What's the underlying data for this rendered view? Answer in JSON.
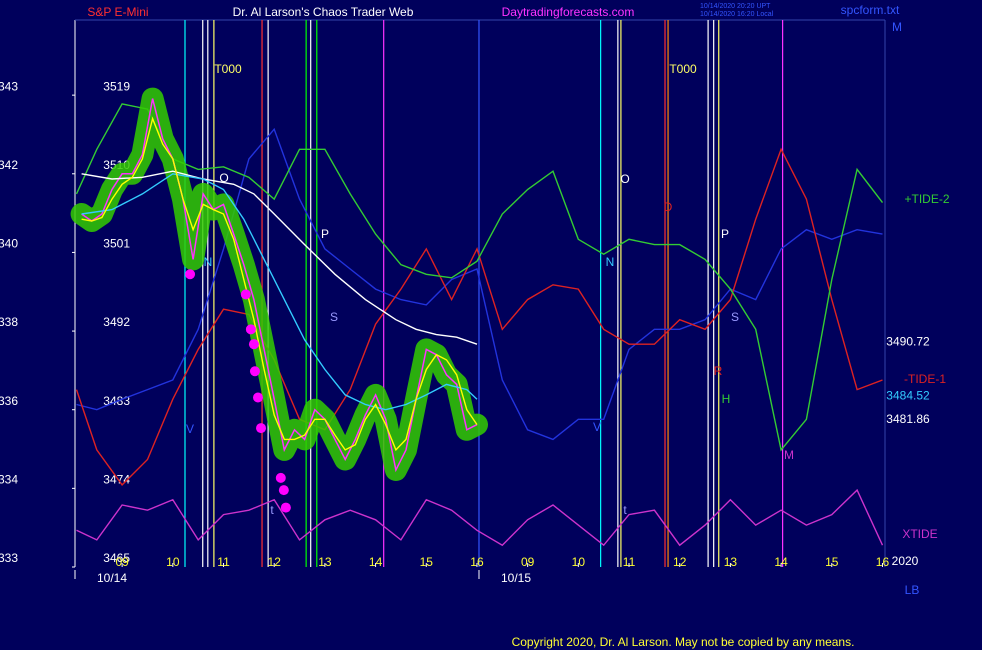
{
  "header": {
    "instrument": "S&P E-Mini",
    "title": "Dr. Al Larson's Chaos Trader Web",
    "site": "Daytradingforecasts.com",
    "timestamp_utc": "10/14/2020 20:20 UPT",
    "timestamp_local": "10/14/2020 16:20 Local",
    "file": "spcform.txt"
  },
  "footer": {
    "copyright": "Copyright 2020, Dr. Al Larson. May not be copied by any means."
  },
  "chart_data": {
    "type": "line",
    "xlim": [
      8.07,
      24.05
    ],
    "ylim": [
      3465,
      3527.6
    ],
    "yticks": [
      3465,
      3474,
      3483,
      3492,
      3501,
      3510,
      3519
    ],
    "left_labels": [
      "333",
      "334",
      "336",
      "338",
      "340",
      "342",
      "343"
    ],
    "xticks": [
      {
        "value": 9,
        "label": "09"
      },
      10,
      11,
      12,
      13,
      14,
      15,
      16,
      {
        "value": 17,
        "label": "09"
      },
      {
        "value": 18,
        "label": "10"
      },
      {
        "value": 19,
        "label": "11"
      },
      {
        "value": 20,
        "label": "12"
      },
      {
        "value": 21,
        "label": "13"
      },
      {
        "value": 22,
        "label": "14"
      },
      {
        "value": 23,
        "label": "15"
      },
      {
        "value": 24,
        "label": "16"
      }
    ],
    "date_ticks": [
      {
        "value": 8.07,
        "label": "10/14"
      },
      {
        "value": 16.04,
        "label": "10/15"
      }
    ],
    "corner_labels": [
      "2020",
      "LB",
      "M"
    ],
    "series": [
      {
        "color": "#ff33ff",
        "halo_color": "#33cc00",
        "x": [
          8.2,
          8.4,
          8.6,
          8.8,
          9.0,
          9.2,
          9.4,
          9.6,
          9.8,
          10.0,
          10.2,
          10.4,
          10.6,
          10.8,
          11.0,
          11.2,
          11.4,
          11.6,
          11.8,
          12.0,
          12.2,
          12.4,
          12.6,
          12.8,
          13.0,
          13.2,
          13.4,
          13.6,
          13.8,
          14.0,
          14.2,
          14.4,
          14.6,
          14.8,
          15.0,
          15.2,
          15.4,
          15.6,
          15.8,
          16.0
        ],
        "values": [
          3505.4,
          3504.6,
          3505.4,
          3508.2,
          3510.0,
          3510.0,
          3512.2,
          3518.6,
          3514.0,
          3511.7,
          3507.1,
          3500.2,
          3507.7,
          3505.9,
          3506.5,
          3503.1,
          3499.6,
          3495.6,
          3489.9,
          3484.2,
          3478.4,
          3480.7,
          3479.6,
          3483.0,
          3481.9,
          3479.6,
          3477.3,
          3479.6,
          3482.4,
          3484.7,
          3481.9,
          3476.1,
          3478.4,
          3484.2,
          3489.9,
          3489.3,
          3487.0,
          3485.9,
          3480.7,
          3481.3
        ]
      },
      {
        "color": "#ffff00",
        "last_value": 3481.86,
        "x": [
          8.2,
          8.4,
          8.6,
          8.8,
          9.0,
          9.2,
          9.4,
          9.6,
          9.8,
          10.0,
          10.2,
          10.4,
          10.6,
          10.8,
          11.0,
          11.2,
          11.4,
          11.6,
          11.8,
          12.0,
          12.2,
          12.4,
          12.6,
          12.8,
          13.0,
          13.2,
          13.4,
          13.6,
          13.8,
          14.0,
          14.2,
          14.4,
          14.6,
          14.8,
          15.0,
          15.2,
          15.4,
          15.6,
          15.8,
          16.0
        ],
        "values": [
          3504.8,
          3504.6,
          3505.0,
          3507.1,
          3508.8,
          3509.6,
          3511.7,
          3516.3,
          3513.4,
          3511.7,
          3507.1,
          3503.6,
          3506.5,
          3505.9,
          3505.4,
          3502.5,
          3497.9,
          3493.3,
          3487.6,
          3482.4,
          3479.6,
          3479.6,
          3480.1,
          3481.9,
          3481.9,
          3480.1,
          3478.4,
          3479.0,
          3481.9,
          3483.6,
          3481.3,
          3478.4,
          3479.6,
          3484.2,
          3487.6,
          3489.3,
          3488.7,
          3487.0,
          3483.0,
          3481.3
        ]
      },
      {
        "color": "#33ccff",
        "last_value": 3484.52,
        "x": [
          8.2,
          8.8,
          9.4,
          10.0,
          10.6,
          11.0,
          11.4,
          11.8,
          12.2,
          12.6,
          13.0,
          13.4,
          13.8,
          14.2,
          14.6,
          15.0,
          15.4,
          15.8,
          16.0
        ],
        "values": [
          3505.4,
          3505.9,
          3507.7,
          3510.0,
          3509.4,
          3508.2,
          3504.8,
          3500.2,
          3495.6,
          3491.0,
          3487.6,
          3484.7,
          3483.6,
          3483.0,
          3483.6,
          3484.7,
          3485.9,
          3485.3,
          3484.2
        ]
      },
      {
        "color": "#ffffff",
        "last_value": 3490.72,
        "x": [
          8.2,
          8.8,
          9.4,
          10.0,
          10.6,
          11.2,
          11.6,
          12.0,
          12.6,
          13.2,
          13.8,
          14.4,
          14.8,
          15.2,
          15.6,
          16.0
        ],
        "values": [
          3510.0,
          3509.4,
          3509.6,
          3510.3,
          3509.4,
          3508.8,
          3507.7,
          3505.4,
          3501.9,
          3498.5,
          3495.6,
          3493.3,
          3492.2,
          3491.6,
          3491.3,
          3490.5
        ]
      },
      {
        "name": "+TIDE-2",
        "color": "#33cc33",
        "x": [
          8.1,
          8.5,
          9,
          9.5,
          10,
          10.5,
          11,
          11.5,
          12,
          12.5,
          13,
          13.5,
          14,
          14.5,
          15,
          15.5,
          16,
          16.5,
          17,
          17.5,
          18,
          18.5,
          19,
          19.5,
          20,
          20.5,
          21,
          21.5,
          22,
          22.5,
          23,
          23.5,
          24
        ],
        "values": [
          3507.7,
          3512.8,
          3518.0,
          3517.4,
          3511.7,
          3510.5,
          3510.8,
          3509.6,
          3507.1,
          3512.8,
          3512.8,
          3507.7,
          3503.1,
          3499.6,
          3498.5,
          3498.1,
          3500.0,
          3505.4,
          3508.2,
          3510.3,
          3502.5,
          3500.8,
          3502.5,
          3501.9,
          3501.9,
          3500.2,
          3496.8,
          3492.2,
          3478.4,
          3481.9,
          3497.9,
          3510.5,
          3506.7
        ]
      },
      {
        "name": "-TIDE-1",
        "color": "#dd2222",
        "x": [
          8.1,
          8.5,
          9,
          9.5,
          10,
          10.5,
          11,
          11.5,
          12,
          12.5,
          13,
          13.5,
          14,
          14.5,
          15,
          15.5,
          16,
          16.5,
          17,
          17.5,
          18,
          18.5,
          19,
          19.5,
          20,
          20.5,
          21,
          21.5,
          22,
          22.5,
          23,
          23.5,
          24
        ],
        "values": [
          3485.3,
          3478.4,
          3474.4,
          3477.3,
          3484.2,
          3489.9,
          3494.5,
          3493.9,
          3488.7,
          3481.9,
          3480.7,
          3485.3,
          3492.8,
          3496.8,
          3501.4,
          3495.6,
          3501.4,
          3492.2,
          3495.6,
          3497.3,
          3496.8,
          3492.2,
          3490.5,
          3490.5,
          3493.3,
          3492.2,
          3495.6,
          3504.8,
          3512.8,
          3507.1,
          3495.6,
          3485.3,
          3486.4
        ]
      },
      {
        "color": "#2233dd",
        "x": [
          8.1,
          8.5,
          9,
          9.5,
          10,
          10.5,
          11,
          11.5,
          12,
          12.5,
          13,
          13.5,
          14,
          14.5,
          15,
          15.5,
          16,
          16.5,
          17,
          17.5,
          18,
          18.5,
          19,
          19.5,
          20,
          20.5,
          21,
          21.5,
          22,
          22.5,
          23,
          23.5,
          24
        ],
        "values": [
          3483.6,
          3483.0,
          3484.2,
          3485.3,
          3486.4,
          3492.2,
          3501.4,
          3511.7,
          3515.1,
          3507.1,
          3501.4,
          3499.1,
          3496.8,
          3495.6,
          3495.0,
          3497.9,
          3499.1,
          3486.4,
          3480.7,
          3479.6,
          3481.9,
          3481.9,
          3489.9,
          3492.2,
          3492.2,
          3493.3,
          3496.8,
          3495.6,
          3501.4,
          3503.6,
          3502.5,
          3503.6,
          3503.1
        ]
      },
      {
        "name": "XTIDE",
        "color": "#cc33cc",
        "x": [
          8.1,
          8.5,
          9,
          9.5,
          10,
          10.5,
          11,
          11.5,
          12,
          12.5,
          13,
          13.5,
          14,
          14.5,
          15,
          15.5,
          16,
          16.5,
          17,
          17.5,
          18,
          18.5,
          19,
          19.5,
          20,
          20.5,
          21,
          21.5,
          22,
          22.5,
          23,
          23.5,
          24
        ],
        "values": [
          3469.2,
          3468.1,
          3472.1,
          3471.5,
          3472.7,
          3468.1,
          3471.0,
          3471.5,
          3472.7,
          3468.1,
          3470.4,
          3471.5,
          3470.4,
          3468.1,
          3472.7,
          3471.5,
          3469.2,
          3467.5,
          3470.4,
          3472.1,
          3469.8,
          3467.5,
          3471.0,
          3471.5,
          3467.5,
          3469.8,
          3472.7,
          3469.8,
          3471.5,
          3469.8,
          3471.0,
          3473.8,
          3467.5
        ]
      }
    ],
    "dots": {
      "color": "#ff00ff",
      "x": [
        10.34,
        11.44,
        11.54,
        11.6,
        11.62,
        11.68,
        11.74,
        12.13,
        12.19,
        12.23
      ],
      "values": [
        3498.5,
        3496.2,
        3492.2,
        3490.5,
        3487.4,
        3484.4,
        3480.9,
        3475.2,
        3473.8,
        3471.8
      ]
    },
    "time_markers": [
      {
        "x": 10.24,
        "color": "#00ffff"
      },
      {
        "x": 10.59,
        "color": "#ffffff"
      },
      {
        "x": 10.69,
        "color": "#ffffff"
      },
      {
        "x": 10.81,
        "color": "#ffff66"
      },
      {
        "x": 11.76,
        "color": "#ff3030"
      },
      {
        "x": 11.88,
        "color": "#ffffff"
      },
      {
        "x": 12.63,
        "color": "#00ff00"
      },
      {
        "x": 12.72,
        "color": "#ffffff"
      },
      {
        "x": 12.84,
        "color": "#00ff00"
      },
      {
        "x": 14.16,
        "color": "#ff33ff"
      },
      {
        "x": 16.04,
        "color": "#3355ff"
      },
      {
        "x": 18.44,
        "color": "#00ffff"
      },
      {
        "x": 18.78,
        "color": "#ffffff"
      },
      {
        "x": 18.84,
        "color": "#ffff66"
      },
      {
        "x": 19.71,
        "color": "#ff3030"
      },
      {
        "x": 19.77,
        "color": "#ff8800"
      },
      {
        "x": 20.56,
        "color": "#ffffff"
      },
      {
        "x": 20.67,
        "color": "#ffffff"
      },
      {
        "x": 20.77,
        "color": "#ffff66"
      },
      {
        "x": 22.03,
        "color": "#ff33ff"
      }
    ],
    "annotations": [
      {
        "text": "T000",
        "color": "#ffff66"
      },
      {
        "text": "T000",
        "color": "#ffff66"
      },
      {
        "text": "O",
        "color": "#ffffff"
      },
      {
        "text": "N",
        "color": "#33ccff"
      },
      {
        "text": "P",
        "color": "#ffffff"
      },
      {
        "text": "S",
        "color": "#9999ff"
      },
      {
        "text": "V",
        "color": "#3355ff"
      },
      {
        "text": "t",
        "color": "#9999ff"
      },
      {
        "text": "O",
        "color": "#ffffff"
      },
      {
        "text": "N",
        "color": "#33ccff"
      },
      {
        "text": "D",
        "color": "#dd2222"
      },
      {
        "text": "P",
        "color": "#ffffff"
      },
      {
        "text": "S",
        "color": "#9999ff"
      },
      {
        "text": "R",
        "color": "#dd2222"
      },
      {
        "text": "H",
        "color": "#33cc33"
      },
      {
        "text": "M",
        "color": "#cc33cc"
      },
      {
        "text": "V",
        "color": "#3355ff"
      },
      {
        "text": "t",
        "color": "#9999ff"
      }
    ]
  }
}
